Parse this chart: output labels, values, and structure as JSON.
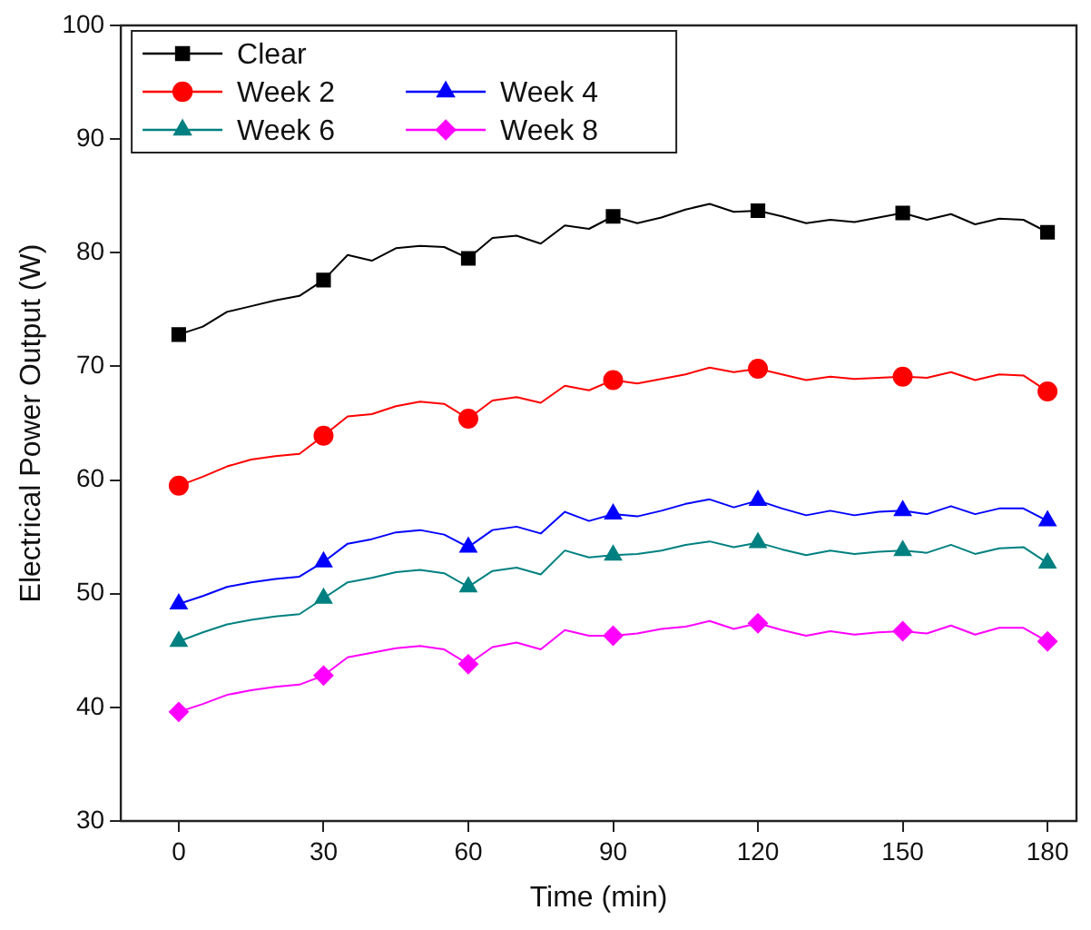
{
  "chart_data": {
    "type": "line",
    "xlabel": "Time (min)",
    "ylabel": "Electrical Power Output (W)",
    "x": [
      0,
      5,
      10,
      15,
      20,
      25,
      30,
      35,
      40,
      45,
      50,
      55,
      60,
      65,
      70,
      75,
      80,
      85,
      90,
      95,
      100,
      105,
      110,
      115,
      120,
      125,
      130,
      135,
      140,
      145,
      150,
      155,
      160,
      165,
      170,
      175,
      180
    ],
    "xlim": [
      -12,
      186
    ],
    "xticks": [
      0,
      30,
      60,
      90,
      120,
      150,
      180
    ],
    "ylim": [
      30,
      100
    ],
    "yticks": [
      30,
      40,
      50,
      60,
      70,
      80,
      90,
      100
    ],
    "grid": false,
    "legend": "top left",
    "line_style": "solid",
    "series": [
      {
        "name": "Clear",
        "type": "scatter",
        "color": "#000000",
        "marker": "square",
        "x": [
          0,
          30,
          60,
          90,
          120,
          150,
          180
        ],
        "values": [
          72.8,
          77.6,
          79.5,
          83.2,
          83.7,
          83.5,
          81.8
        ]
      },
      {
        "name": "Week 2",
        "type": "scatter",
        "color": "#ff0000",
        "marker": "circle",
        "x": [
          0,
          30,
          60,
          90,
          120,
          150,
          180
        ],
        "values": [
          59.5,
          63.9,
          65.4,
          68.8,
          69.8,
          69.1,
          67.8
        ]
      },
      {
        "name": "Week 4",
        "type": "scatter",
        "color": "#0000ff",
        "marker": "triangle",
        "x": [
          0,
          30,
          60,
          90,
          120,
          150,
          180
        ],
        "values": [
          49.1,
          52.8,
          54.1,
          57.0,
          58.2,
          57.3,
          56.4
        ]
      },
      {
        "name": "Week 6",
        "type": "scatter",
        "color": "#008080",
        "marker": "triangle",
        "x": [
          0,
          30,
          60,
          90,
          120,
          150,
          180
        ],
        "values": [
          45.8,
          49.6,
          50.6,
          53.4,
          54.5,
          53.8,
          52.7
        ]
      },
      {
        "name": "Week 8",
        "type": "scatter",
        "color": "#ff00ff",
        "marker": "diamond",
        "x": [
          0,
          30,
          60,
          90,
          120,
          150,
          180
        ],
        "values": [
          39.6,
          42.8,
          43.8,
          46.3,
          47.4,
          46.7,
          45.8
        ]
      },
      {
        "color": "#000000",
        "marker": "none",
        "values": [
          72.8,
          73.5,
          74.8,
          75.3,
          75.8,
          76.2,
          77.6,
          79.8,
          79.3,
          80.4,
          80.6,
          80.5,
          79.5,
          81.3,
          81.5,
          80.8,
          82.4,
          82.1,
          83.2,
          82.6,
          83.1,
          83.8,
          84.3,
          83.6,
          83.7,
          83.2,
          82.6,
          82.9,
          82.7,
          83.1,
          83.5,
          82.9,
          83.4,
          82.5,
          83.0,
          82.9,
          81.8
        ]
      },
      {
        "color": "#ff0000",
        "marker": "none",
        "values": [
          59.5,
          60.3,
          61.2,
          61.8,
          62.1,
          62.3,
          63.9,
          65.6,
          65.8,
          66.5,
          66.9,
          66.7,
          65.4,
          67.0,
          67.3,
          66.8,
          68.3,
          67.9,
          68.8,
          68.5,
          68.9,
          69.3,
          69.9,
          69.5,
          69.8,
          69.3,
          68.8,
          69.1,
          68.9,
          69.0,
          69.1,
          69.0,
          69.5,
          68.8,
          69.3,
          69.2,
          67.8
        ]
      },
      {
        "color": "#0000ff",
        "marker": "none",
        "values": [
          49.1,
          49.8,
          50.6,
          51.0,
          51.3,
          51.5,
          52.8,
          54.4,
          54.8,
          55.4,
          55.6,
          55.2,
          54.1,
          55.6,
          55.9,
          55.3,
          57.2,
          56.4,
          57.0,
          56.8,
          57.3,
          57.9,
          58.3,
          57.6,
          58.2,
          57.5,
          56.9,
          57.3,
          56.9,
          57.2,
          57.3,
          57.0,
          57.7,
          57.0,
          57.5,
          57.5,
          56.4
        ]
      },
      {
        "color": "#008080",
        "marker": "none",
        "values": [
          45.8,
          46.6,
          47.3,
          47.7,
          48.0,
          48.2,
          49.6,
          51.0,
          51.4,
          51.9,
          52.1,
          51.8,
          50.6,
          52.0,
          52.3,
          51.7,
          53.8,
          53.2,
          53.4,
          53.5,
          53.8,
          54.3,
          54.6,
          54.1,
          54.5,
          53.9,
          53.4,
          53.8,
          53.5,
          53.7,
          53.8,
          53.6,
          54.3,
          53.5,
          54.0,
          54.1,
          52.7
        ]
      },
      {
        "color": "#ff00ff",
        "marker": "none",
        "values": [
          39.6,
          40.3,
          41.1,
          41.5,
          41.8,
          42.0,
          42.8,
          44.4,
          44.8,
          45.2,
          45.4,
          45.1,
          43.8,
          45.3,
          45.7,
          45.1,
          46.8,
          46.3,
          46.3,
          46.5,
          46.9,
          47.1,
          47.6,
          46.9,
          47.4,
          46.8,
          46.3,
          46.7,
          46.4,
          46.6,
          46.7,
          46.5,
          47.2,
          46.4,
          47.0,
          47.0,
          45.8
        ]
      }
    ]
  }
}
